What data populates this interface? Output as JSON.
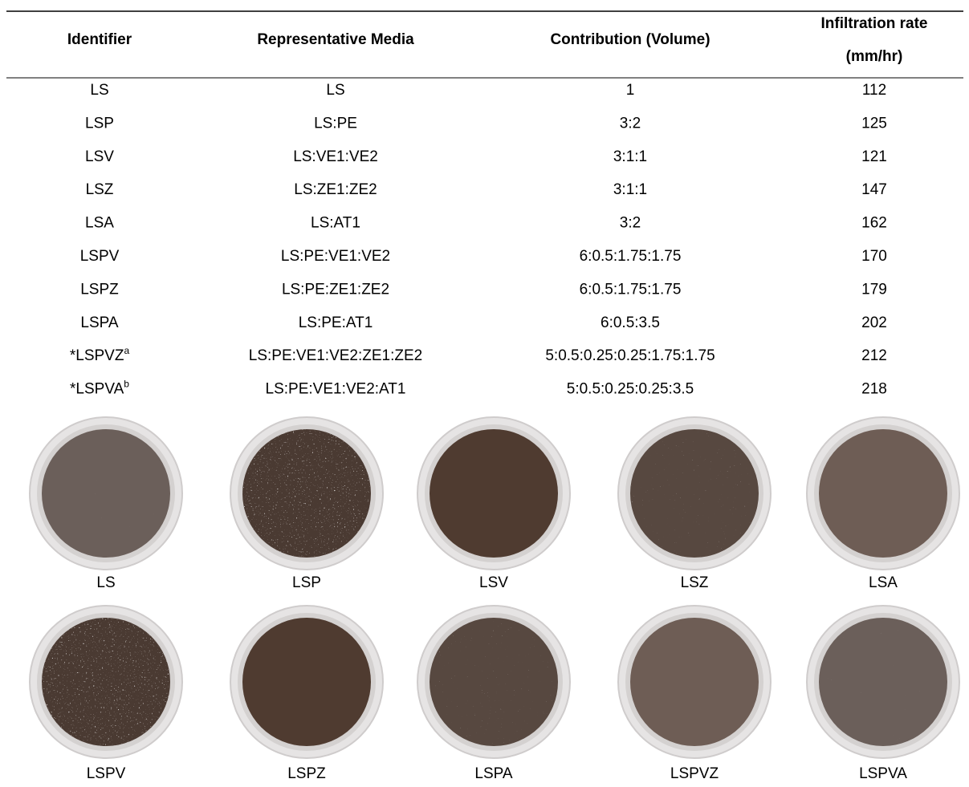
{
  "table": {
    "header": [
      "Identifier",
      "Representative Media",
      "Contribution (Volume)",
      [
        "Infiltration rate",
        "(mm/hr)"
      ]
    ],
    "rows": [
      [
        {
          "text": "LS"
        },
        "LS",
        "1",
        112
      ],
      [
        {
          "text": "LSP"
        },
        "LS:PE",
        "3:2",
        125
      ],
      [
        {
          "text": "LSV"
        },
        "LS:VE1:VE2",
        "3:1:1",
        121
      ],
      [
        {
          "text": "LSZ"
        },
        "LS:ZE1:ZE2",
        "3:1:1",
        147
      ],
      [
        {
          "text": "LSA"
        },
        "LS:AT1",
        "3:2",
        162
      ],
      [
        {
          "text": "LSPV"
        },
        "LS:PE:VE1:VE2",
        "6:0.5:1.75:1.75",
        170
      ],
      [
        {
          "text": "LSPZ"
        },
        "LS:PE:ZE1:ZE2",
        "6:0.5:1.75:1.75",
        179
      ],
      [
        {
          "text": "LSPA"
        },
        "LS:PE:AT1",
        "6:0.5:3.5",
        202
      ],
      [
        {
          "text": "*LSPVZ",
          "sup": "a"
        },
        "LS:PE:VE1:VE2:ZE1:ZE2",
        "5:0.5:0.25:0.25:1.75:1.75",
        212
      ],
      [
        {
          "text": "*LSPVA",
          "sup": "b"
        },
        "LS:PE:VE1:VE2:AT1",
        "5:0.5:0.25:0.25:3.5",
        218
      ]
    ]
  },
  "photos": [
    [
      "LS",
      "LSP",
      "LSV",
      "LSZ",
      "LSA"
    ],
    [
      "LSPV",
      "LSPZ",
      "LSPA",
      "LSPVZ",
      "LSPVA"
    ]
  ]
}
